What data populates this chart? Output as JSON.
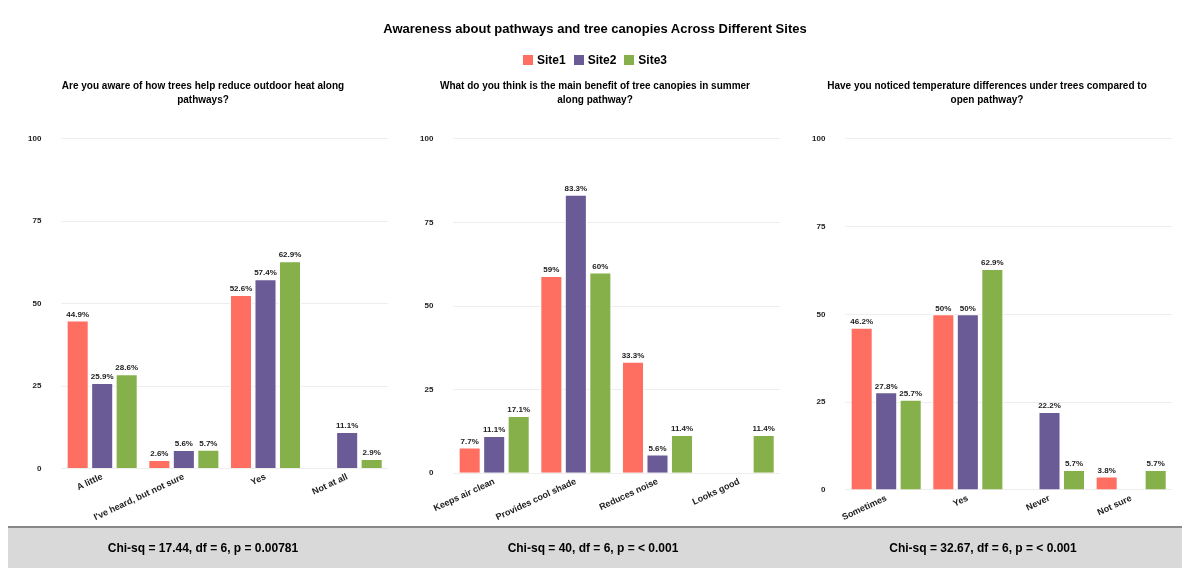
{
  "chart_data": [
    {
      "type": "other",
      "title": "Awareness about pathways and tree canopies Across Different Sites",
      "legend": "top",
      "series": [
        {
          "name": "Site1",
          "color": "#ff6f61"
        },
        {
          "name": "Site2",
          "color": "#6a5a96"
        },
        {
          "name": "Site3",
          "color": "#86b04a"
        }
      ]
    },
    {
      "type": "bar",
      "subtitle": "Are you aware of how trees help reduce outdoor heat along pathways?",
      "categories": [
        "A little",
        "I've heard, but not sure",
        "Yes",
        "Not at all"
      ],
      "series": [
        {
          "color": "#ff6f61",
          "values": [
            44.9,
            2.6,
            52.6,
            null
          ],
          "value_labels": [
            "44.9%",
            "2.6%",
            "52.6%",
            null
          ]
        },
        {
          "color": "#6a5a96",
          "values": [
            25.9,
            5.6,
            57.4,
            11.1
          ],
          "value_labels": [
            "25.9%",
            "5.6%",
            "57.4%",
            "11.1%"
          ]
        },
        {
          "color": "#86b04a",
          "values": [
            28.6,
            5.7,
            62.9,
            2.9
          ],
          "value_labels": [
            "28.6%",
            "5.7%",
            "62.9%",
            "2.9%"
          ]
        }
      ],
      "ylim": [
        0,
        100
      ],
      "yticks": [
        0,
        25,
        50,
        75,
        100
      ],
      "grid": "y",
      "annotations": [
        "Chi-sq = 17.44, df = 6, p = 0.00781"
      ]
    },
    {
      "type": "bar",
      "subtitle": "What do you think is the main benefit of tree canopies in summer along pathway?",
      "categories": [
        "Keeps air clean",
        "Provides cool shade",
        "Reduces noise",
        "Looks good"
      ],
      "series": [
        {
          "color": "#ff6f61",
          "values": [
            7.7,
            59,
            33.3,
            null
          ],
          "value_labels": [
            "7.7%",
            "59%",
            "33.3%",
            null
          ]
        },
        {
          "color": "#6a5a96",
          "values": [
            11.1,
            83.3,
            5.6,
            null
          ],
          "value_labels": [
            "11.1%",
            "83.3%",
            "5.6%",
            null
          ]
        },
        {
          "color": "#86b04a",
          "values": [
            17.1,
            60,
            11.4,
            11.4
          ],
          "value_labels": [
            "17.1%",
            "60%",
            "11.4%",
            "11.4%"
          ]
        }
      ],
      "ylim": [
        0,
        100
      ],
      "yticks": [
        0,
        25,
        50,
        75,
        100
      ],
      "grid": "y",
      "annotations": [
        "Chi-sq = 40, df = 6, p = < 0.001"
      ]
    },
    {
      "type": "bar",
      "subtitle": "Have you noticed temperature differences under trees compared to open pathway?",
      "categories": [
        "Sometimes",
        "Yes",
        "Never",
        "Not sure"
      ],
      "series": [
        {
          "color": "#ff6f61",
          "values": [
            46.2,
            50,
            null,
            3.8
          ],
          "value_labels": [
            "46.2%",
            "50%",
            null,
            "3.8%"
          ]
        },
        {
          "color": "#6a5a96",
          "values": [
            27.8,
            50,
            22.2,
            null
          ],
          "value_labels": [
            "27.8%",
            "50%",
            "22.2%",
            null
          ]
        },
        {
          "color": "#86b04a",
          "values": [
            25.7,
            62.9,
            5.7,
            5.7
          ],
          "value_labels": [
            "25.7%",
            "62.9%",
            "5.7%",
            "5.7%"
          ]
        }
      ],
      "ylim": [
        0,
        100
      ],
      "yticks": [
        0,
        25,
        50,
        75,
        100
      ],
      "grid": "y",
      "annotations": [
        "Chi-sq = 32.67, df = 6, p = < 0.001"
      ]
    }
  ]
}
